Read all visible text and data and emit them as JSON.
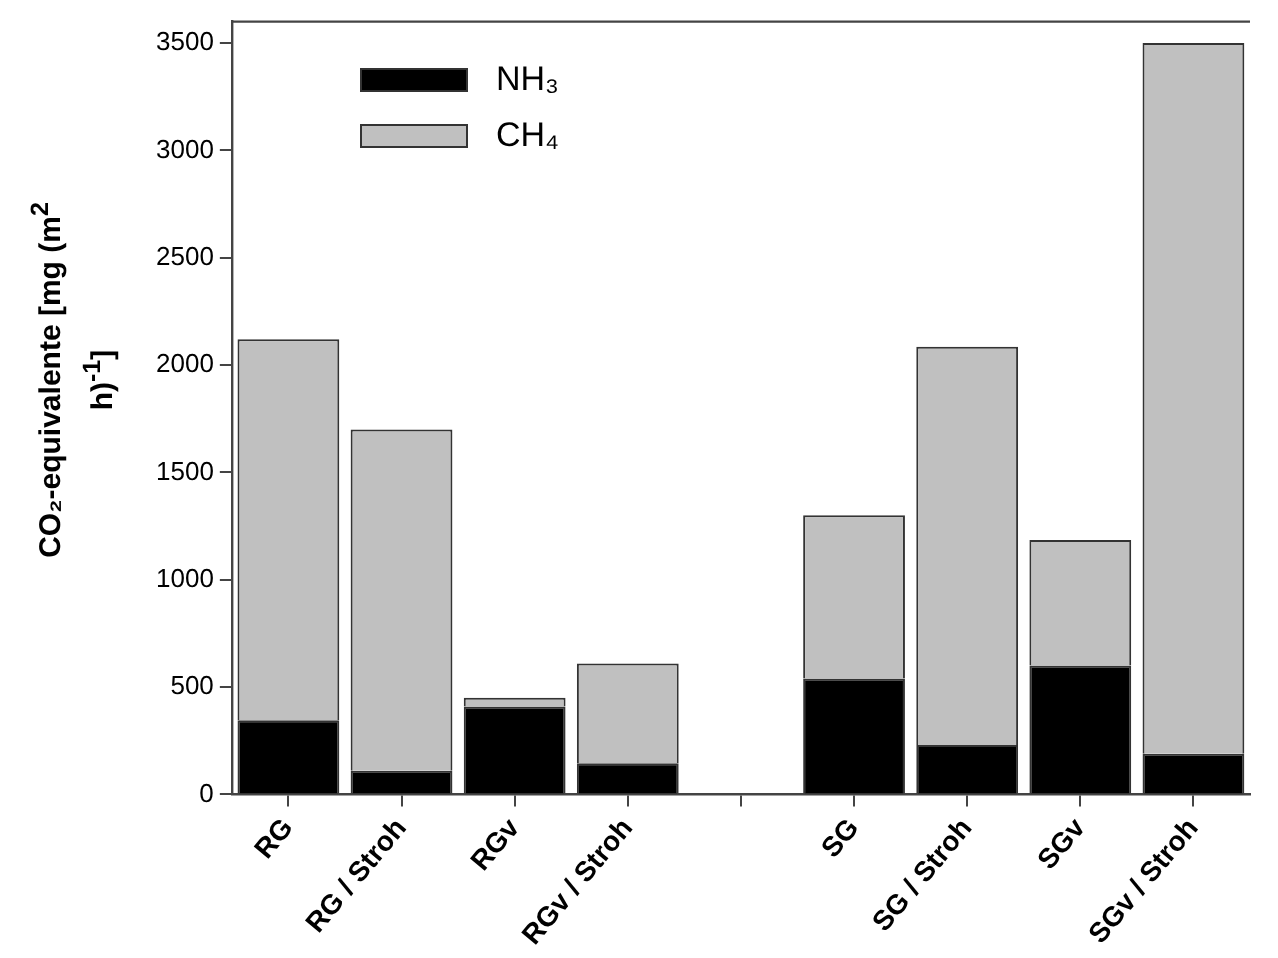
{
  "chart_data": {
    "type": "bar",
    "stacked": true,
    "ylabel": "CO₂-equivalente [mg (m$^{2}$ h)$^{-1}$]",
    "categories": [
      "RG",
      "RG / Stroh",
      "RGv",
      "RGv / Stroh",
      null,
      "SG",
      "SG / Stroh",
      "SGv",
      "SGv / Stroh"
    ],
    "series": [
      {
        "name": "NH₃",
        "color": "#000000",
        "values": [
          345,
          110,
          410,
          145,
          null,
          540,
          230,
          600,
          190
        ]
      },
      {
        "name": "CH₄",
        "color": "#c0c0c0",
        "values": [
          1775,
          1590,
          40,
          465,
          null,
          760,
          1855,
          585,
          3310
        ]
      }
    ],
    "ylim": [
      0,
      3600
    ],
    "yticks": [
      0,
      500,
      1000,
      1500,
      2000,
      2500,
      3000,
      3500
    ],
    "grid": false,
    "legend": "top left"
  }
}
